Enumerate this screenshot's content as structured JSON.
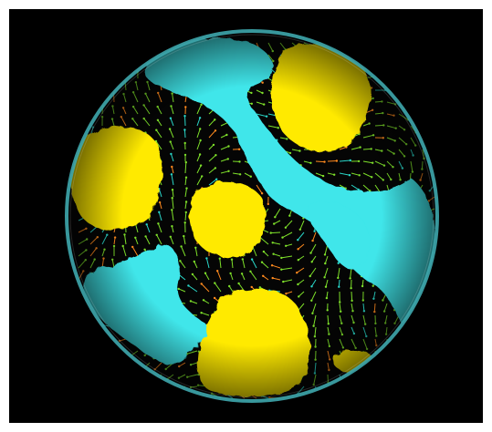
{
  "scene": {
    "subject": "sphere-with-isosurfaces-and-vector-arrows",
    "background_color": "#000000",
    "border_color": "#ffffff",
    "colors": {
      "warm_blob": "#ffea00",
      "warm_blob_shade": "#e0c400",
      "cool_blob": "#3fe6ea",
      "cool_blob_shade": "#20bcc4",
      "sphere_rim": "#3ea7ad",
      "arrow_green": "#7ee02a",
      "arrow_orange": "#ff8a1e",
      "arrow_cyan": "#2ad6c8"
    },
    "icons": [
      "sphere-icon"
    ]
  }
}
